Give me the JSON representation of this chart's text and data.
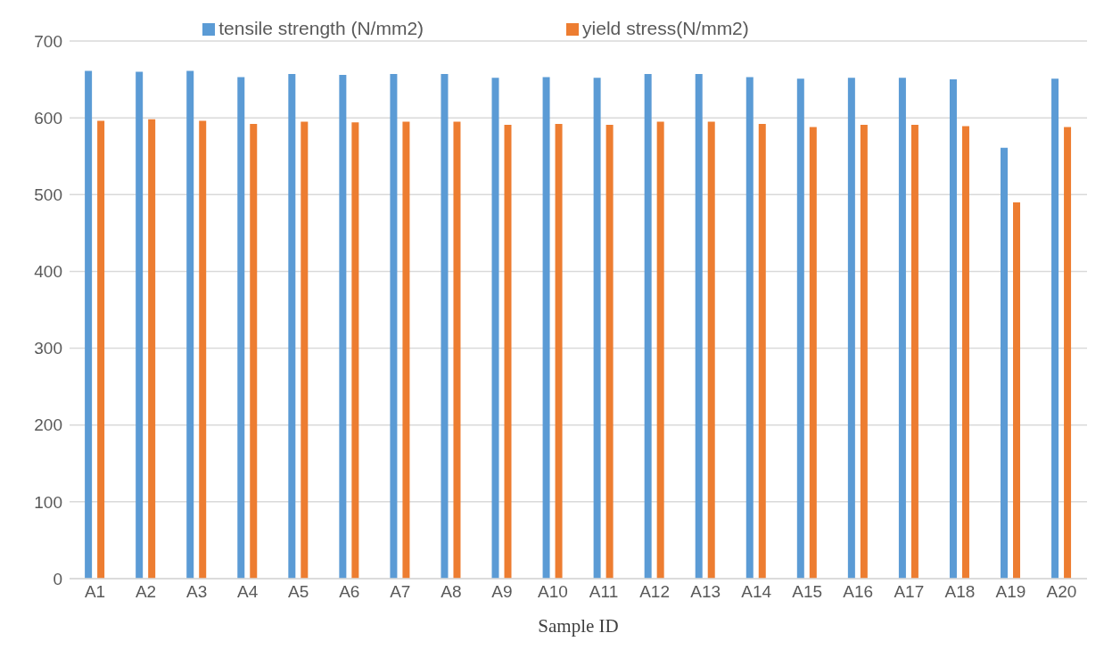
{
  "chart_data": {
    "type": "bar",
    "xlabel": "Sample ID",
    "categories": [
      "A1",
      "A2",
      "A3",
      "A4",
      "A5",
      "A6",
      "A7",
      "A8",
      "A9",
      "A10",
      "A11",
      "A12",
      "A13",
      "A14",
      "A15",
      "A16",
      "A17",
      "A18",
      "A19",
      "A20"
    ],
    "series": [
      {
        "name": "tensile strength (N/mm2)",
        "color": "#5b9bd5",
        "values": [
          661,
          660,
          661,
          653,
          657,
          656,
          657,
          657,
          652,
          653,
          652,
          657,
          657,
          653,
          651,
          652,
          652,
          650,
          561,
          651
        ]
      },
      {
        "name": "yield stress(N/mm2)",
        "color": "#ed7d31",
        "values": [
          596,
          598,
          596,
          592,
          595,
          594,
          595,
          595,
          591,
          592,
          591,
          595,
          595,
          592,
          588,
          591,
          591,
          589,
          490,
          588
        ]
      }
    ],
    "ylim": [
      0,
      700
    ],
    "yticks": [
      0,
      100,
      200,
      300,
      400,
      500,
      600,
      700
    ],
    "grid": "y",
    "legend": "top"
  }
}
